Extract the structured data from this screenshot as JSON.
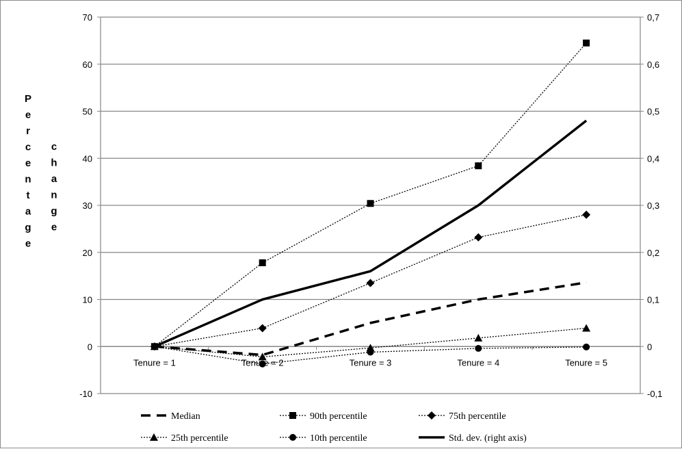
{
  "chart_data": {
    "type": "line",
    "title": "",
    "ylabel": "Percentage change",
    "ylabel_lines": [
      "Percentage",
      "change"
    ],
    "xlabel": "",
    "categories": [
      "Tenure = 1",
      "Tenure = 2",
      "Tenure = 3",
      "Tenure = 4",
      "Tenure = 5"
    ],
    "ylim": [
      -10,
      70
    ],
    "yticks": [
      "-10",
      "0",
      "10",
      "20",
      "30",
      "40",
      "50",
      "60",
      "70"
    ],
    "y2lim": [
      -0.1,
      0.7
    ],
    "y2ticks": [
      "-0,1",
      "0",
      "0,1",
      "0,2",
      "0,3",
      "0,4",
      "0,5",
      "0,6",
      "0,7"
    ],
    "grid": true,
    "legend_position": "bottom",
    "series": [
      {
        "name": "Median",
        "values": [
          0,
          -1.8,
          5,
          10,
          13.6
        ],
        "axis": "left",
        "style": "dashed",
        "marker": "none"
      },
      {
        "name": "90th percentile",
        "values": [
          0,
          17.8,
          30.4,
          38.4,
          64.5
        ],
        "axis": "left",
        "style": "dotted",
        "marker": "square"
      },
      {
        "name": "75th percentile",
        "values": [
          0,
          3.9,
          13.5,
          23.2,
          28
        ],
        "axis": "left",
        "style": "dotted",
        "marker": "diamond"
      },
      {
        "name": "25th percentile",
        "values": [
          0,
          -2.2,
          -0.3,
          1.8,
          3.9
        ],
        "axis": "left",
        "style": "dotted",
        "marker": "triangle"
      },
      {
        "name": "10th percentile",
        "values": [
          0,
          -3.7,
          -1.2,
          -0.4,
          -0.1
        ],
        "axis": "left",
        "style": "dotted",
        "marker": "circle"
      },
      {
        "name": "Std. dev. (right axis)",
        "values": [
          0,
          0.1,
          0.16,
          0.3,
          0.48
        ],
        "axis": "right",
        "style": "solid",
        "marker": "none"
      }
    ]
  }
}
